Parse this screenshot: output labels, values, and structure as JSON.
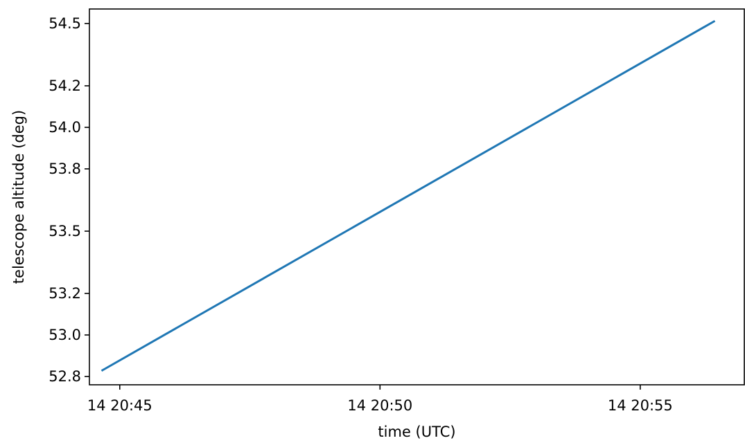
{
  "chart_data": {
    "type": "line",
    "title": "",
    "xlabel": "time (UTC)",
    "ylabel": "telescope altitude (deg)",
    "x_ticks": [
      "14 20:45",
      "14 20:50",
      "14 20:55"
    ],
    "y_ticks": [
      "52.8",
      "53.0",
      "53.2",
      "53.5",
      "53.8",
      "54.0",
      "54.2",
      "54.5"
    ],
    "y_tick_values": [
      52.8,
      53.0,
      53.2,
      53.5,
      53.8,
      54.0,
      54.2,
      54.5
    ],
    "xlim": [
      "20:44:25",
      "20:57:00"
    ],
    "ylim": [
      52.76,
      54.57
    ],
    "grid": false,
    "legend": false,
    "series": [
      {
        "color": "#1f77b4",
        "x": [
          "20:44:40",
          "20:56:25"
        ],
        "y": [
          52.83,
          54.51
        ]
      }
    ]
  }
}
